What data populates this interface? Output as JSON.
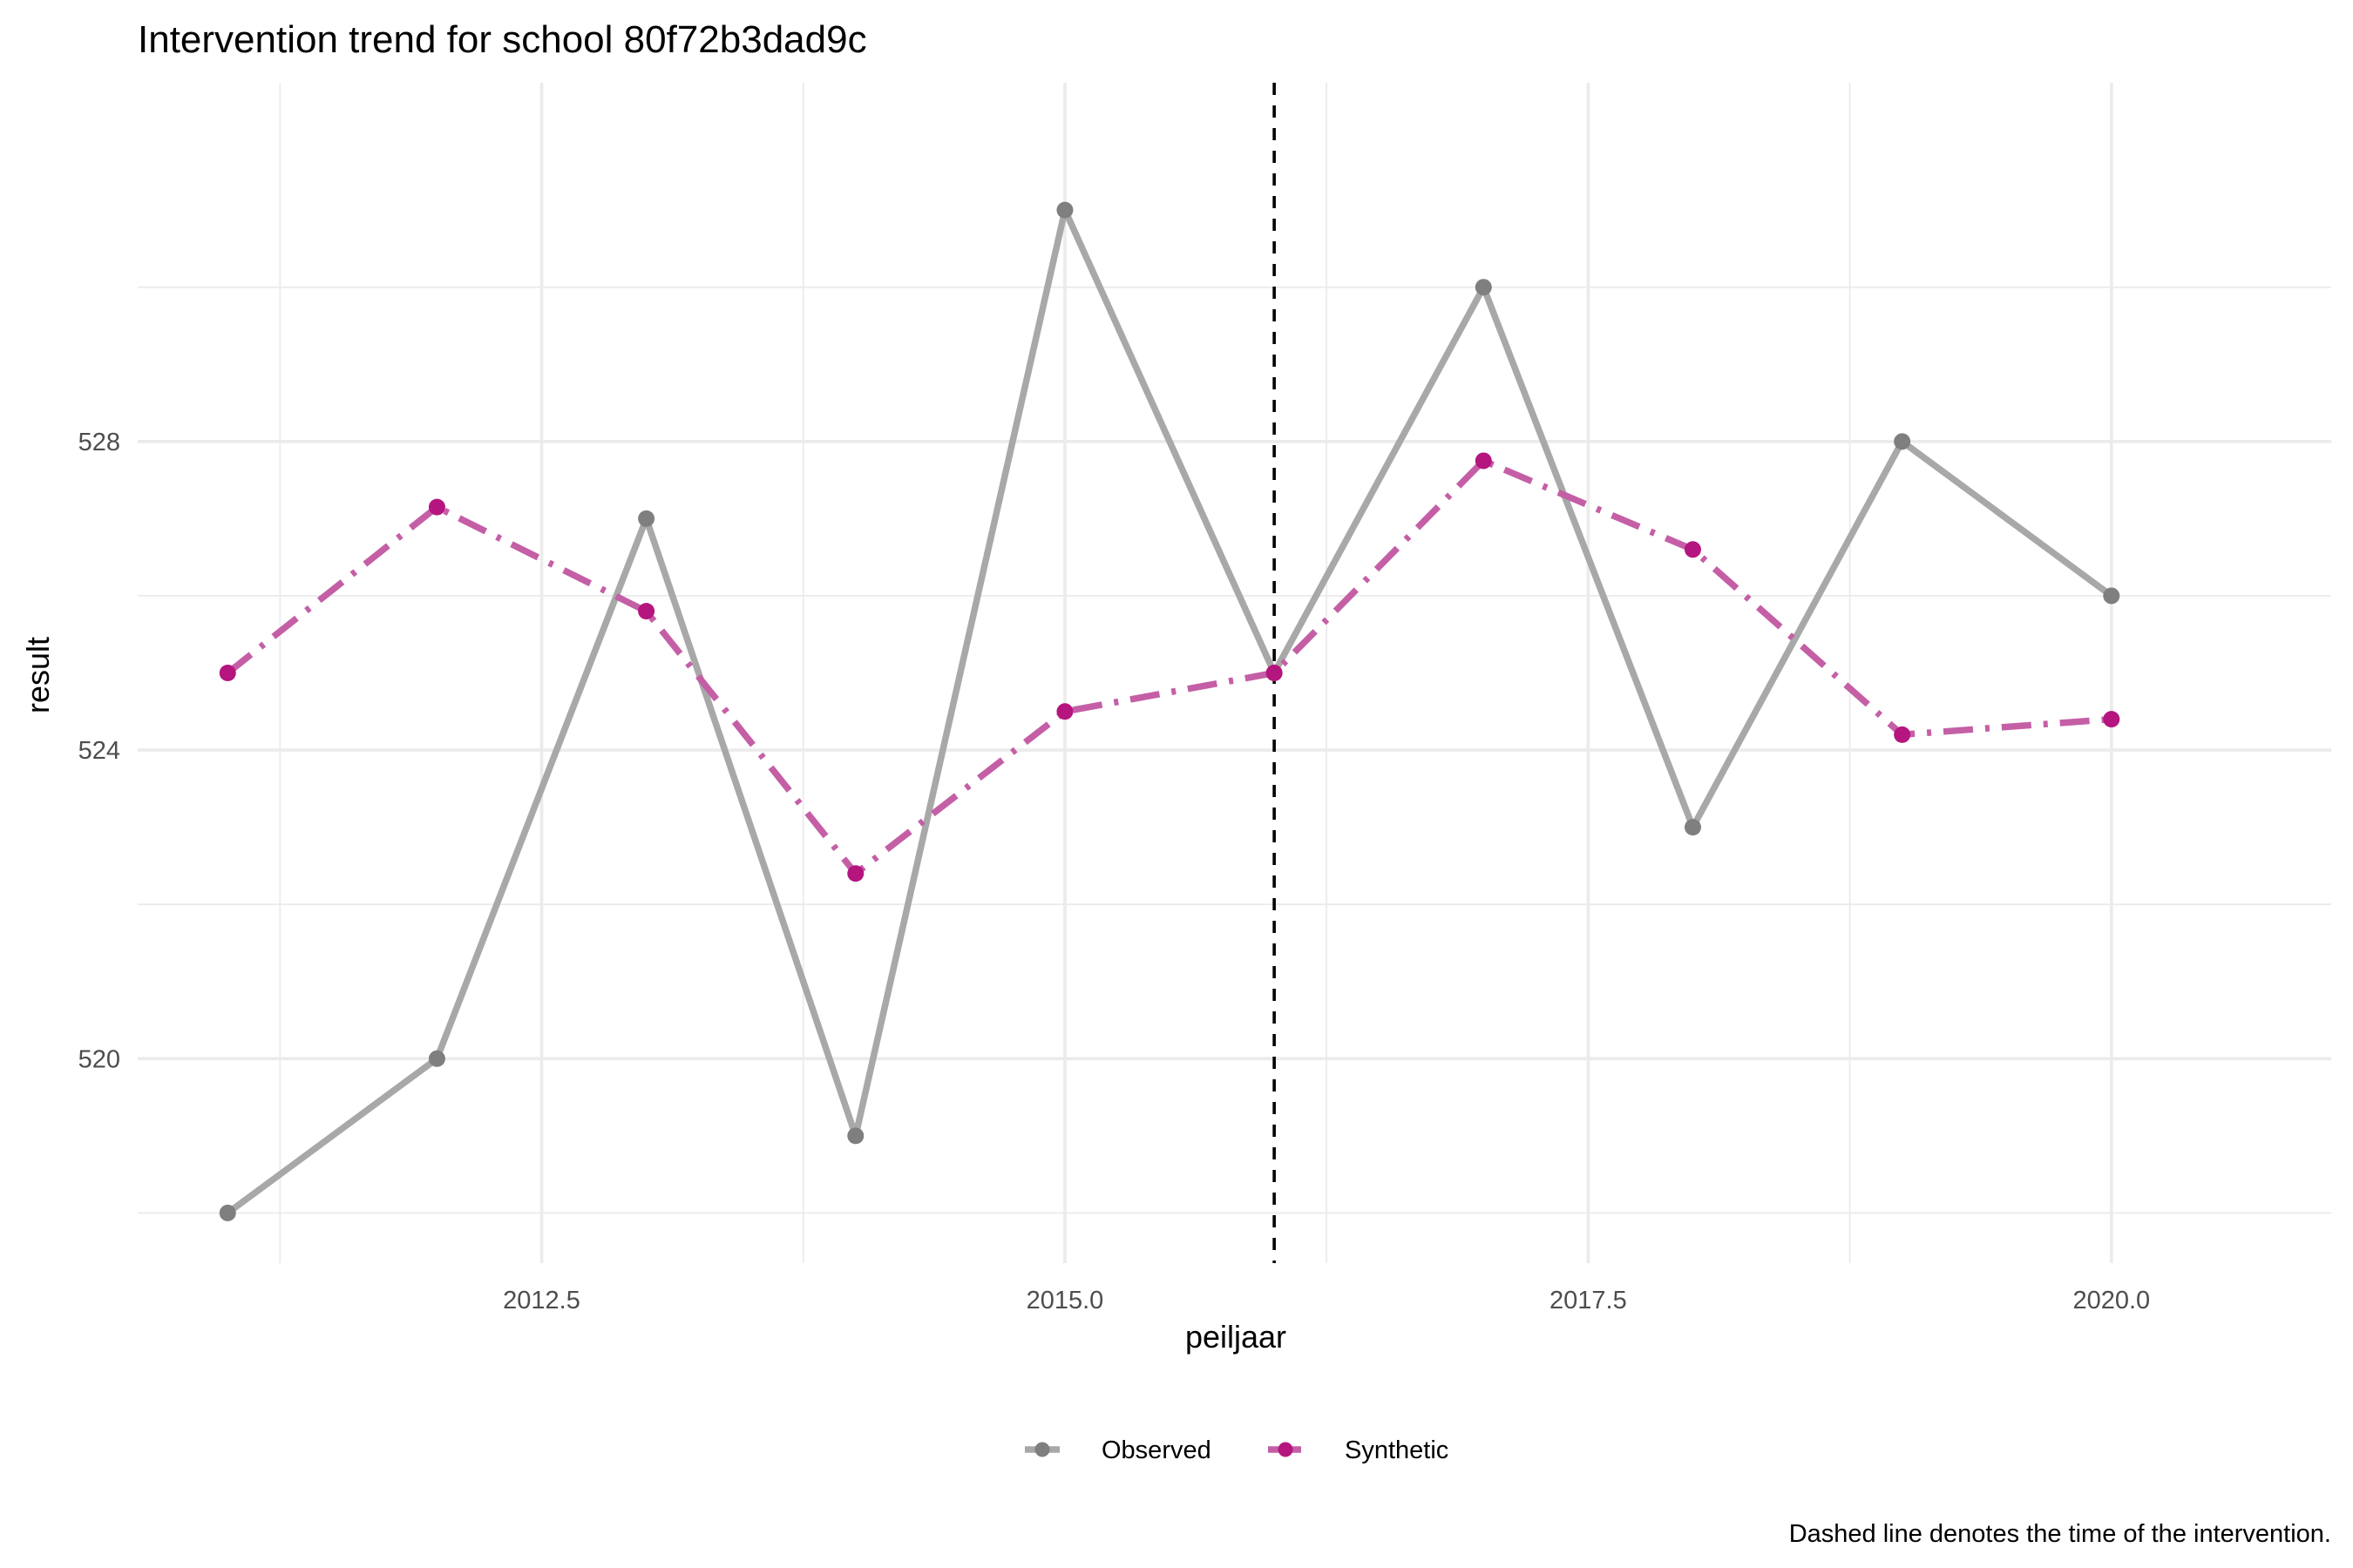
{
  "chart_data": {
    "type": "line",
    "title": "Intervention trend for school 80f72b3dad9c",
    "xlabel": "peiljaar",
    "ylabel": "result",
    "caption": "Dashed line denotes the time of the intervention.",
    "x": [
      2011,
      2012,
      2013,
      2014,
      2015,
      2016,
      2017,
      2018,
      2019,
      2020
    ],
    "x_ticks": [
      "2012.5",
      "2015.0",
      "2017.5",
      "2020.0"
    ],
    "x_tick_values": [
      2012.5,
      2015.0,
      2017.5,
      2020.0
    ],
    "y_ticks": [
      "520",
      "524",
      "528"
    ],
    "y_tick_values": [
      520,
      524,
      528
    ],
    "xlim": [
      2010.57,
      2021.05
    ],
    "ylim": [
      517.35,
      532.65
    ],
    "intervention_x": 2016,
    "grid": true,
    "legend_position": "bottom",
    "series": [
      {
        "name": "Observed",
        "color": "#7f7f7f",
        "line_color": "#a8a8a8",
        "linestyle": "solid",
        "values": [
          518,
          520,
          527,
          519,
          531,
          525,
          530,
          523,
          528,
          526
        ]
      },
      {
        "name": "Synthetic",
        "color": "#b5157e",
        "line_color": "#c45fa6",
        "linestyle": "dashdot",
        "values": [
          525,
          527.15,
          525.8,
          522.4,
          524.5,
          525,
          527.75,
          526.6,
          524.2,
          524.4
        ]
      }
    ]
  }
}
